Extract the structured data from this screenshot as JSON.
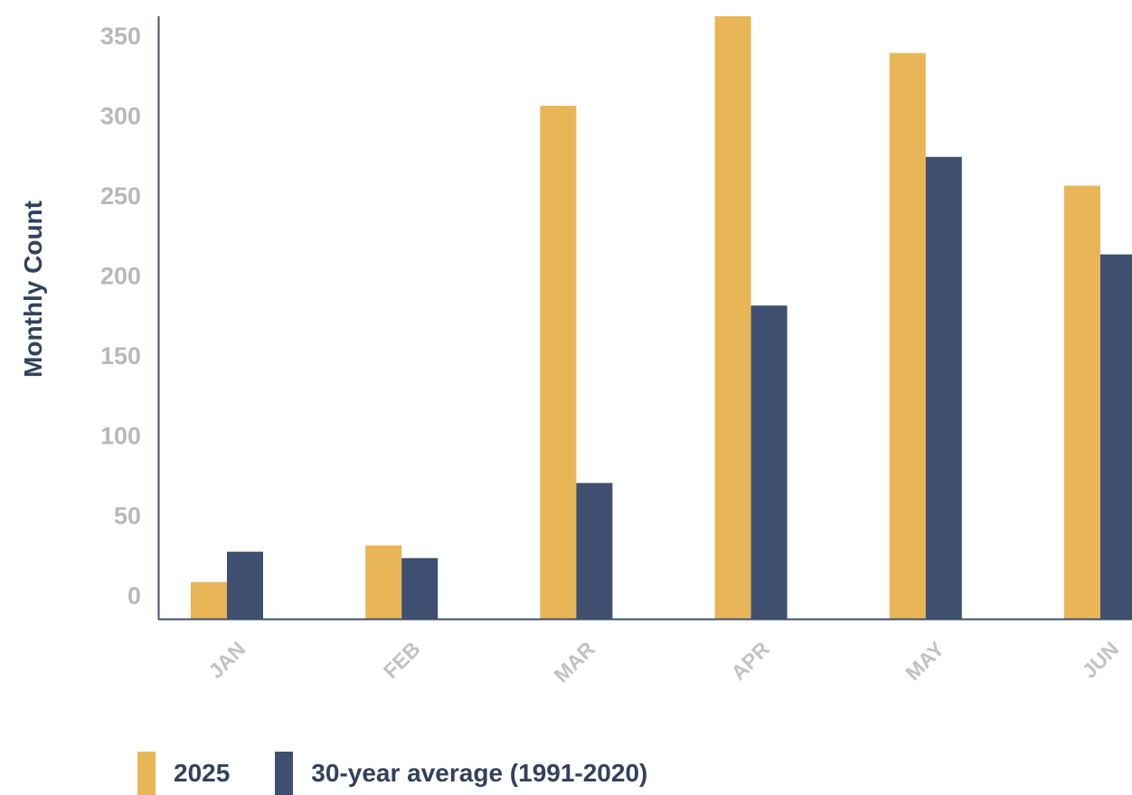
{
  "chart_data": {
    "type": "bar",
    "title": "",
    "xlabel": "",
    "ylabel": "Monthly Count",
    "categories": [
      "JAN",
      "FEB",
      "MAR",
      "APR",
      "MAY",
      "JUN"
    ],
    "series": [
      {
        "name": "2025",
        "values": [
          8,
          31,
          306,
          362,
          339,
          256
        ],
        "color": "#e8b657"
      },
      {
        "name": "30-year average (1991-2020)",
        "values": [
          27,
          23,
          70,
          181,
          274,
          213
        ],
        "color": "#3e4f6f"
      }
    ],
    "ylim": [
      -15,
      362
    ],
    "yticks": [
      0,
      50,
      100,
      150,
      200,
      250,
      300,
      350
    ],
    "grid": false,
    "legend_position": "bottom-left",
    "colors": {
      "axis": "#3e4f6f",
      "tick_y": "#b8b8b8",
      "tick_x": "#c2c2c2",
      "axis_title": "#33415c"
    }
  }
}
